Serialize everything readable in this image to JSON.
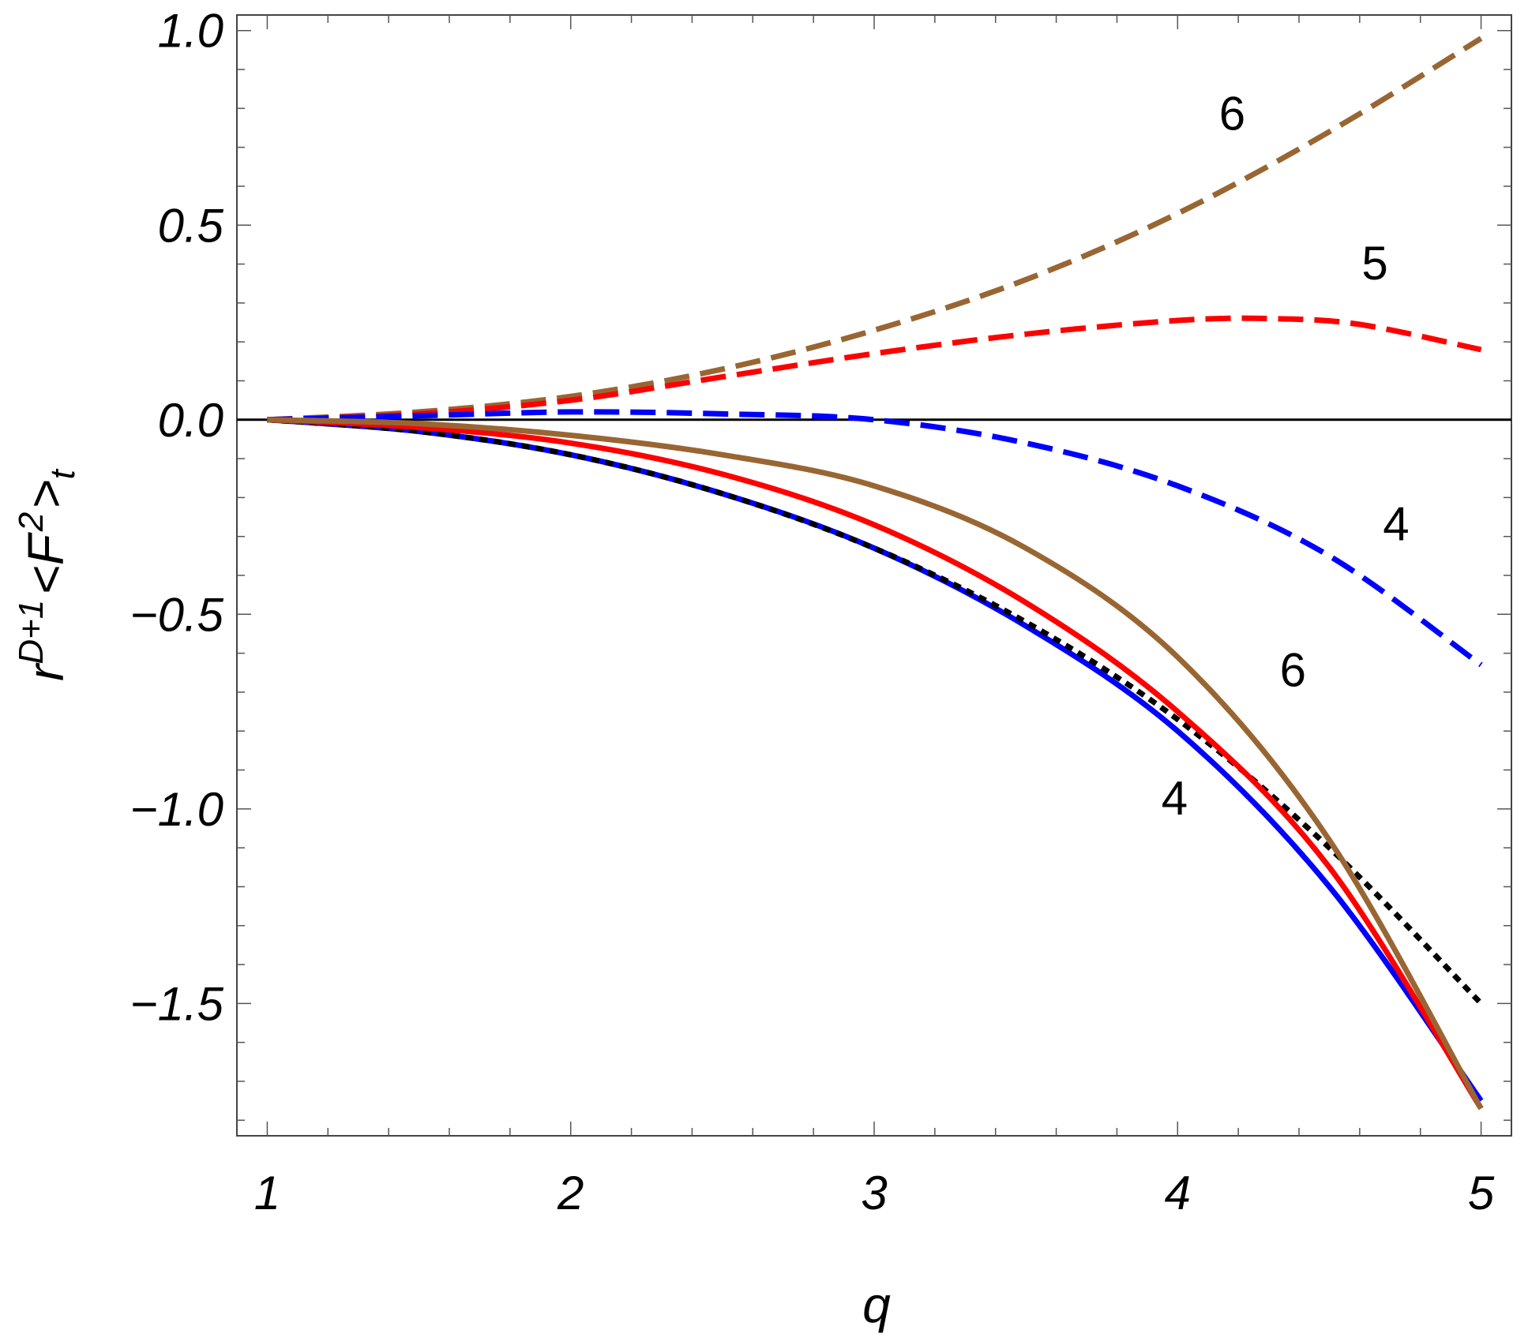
{
  "chart_data": {
    "type": "line",
    "title": "",
    "xlabel": "q",
    "ylabel": {
      "base": "r",
      "base_sup": "D+1",
      "open": "<F",
      "open_sup": "2",
      "close": ">",
      "close_sub": "t"
    },
    "xlim": [
      0.9,
      5.1
    ],
    "ylim": [
      -1.84,
      1.04
    ],
    "xticks": [
      1,
      2,
      3,
      4,
      5
    ],
    "xtick_labels": [
      "1",
      "2",
      "3",
      "4",
      "5"
    ],
    "yticks": [
      1.0,
      0.5,
      0.0,
      -0.5,
      -1.0,
      -1.5
    ],
    "ytick_labels": [
      "1.0",
      "0.5",
      "0.0",
      "−0.5",
      "−1.0",
      "−1.5"
    ],
    "grid": false,
    "zero_line": true,
    "series": [
      {
        "color": "#996633",
        "style": "dashed",
        "x": [
          1.0,
          1.5,
          2.0,
          2.5,
          3.0,
          3.5,
          4.0,
          4.5,
          5.0
        ],
        "y": [
          0.0,
          0.02,
          0.06,
          0.13,
          0.23,
          0.36,
          0.53,
          0.74,
          0.98
        ]
      },
      {
        "color": "#ff0000",
        "style": "dashed",
        "x": [
          1.0,
          1.5,
          2.0,
          2.5,
          3.0,
          3.5,
          4.0,
          4.3,
          4.6,
          5.0
        ],
        "y": [
          0.0,
          0.015,
          0.05,
          0.11,
          0.17,
          0.22,
          0.255,
          0.26,
          0.245,
          0.18
        ]
      },
      {
        "color": "#0000ff",
        "style": "dashed",
        "x": [
          1.0,
          1.5,
          2.0,
          2.5,
          3.0,
          3.5,
          4.0,
          4.5,
          5.0
        ],
        "y": [
          0.0,
          0.01,
          0.02,
          0.015,
          0.0,
          -0.06,
          -0.17,
          -0.35,
          -0.63
        ]
      },
      {
        "color": "#0000ff",
        "style": "solid",
        "x": [
          1.0,
          1.5,
          2.0,
          2.5,
          3.0,
          3.5,
          4.0,
          4.5,
          5.0
        ],
        "y": [
          0.0,
          -0.03,
          -0.09,
          -0.19,
          -0.33,
          -0.53,
          -0.8,
          -1.2,
          -1.75
        ]
      },
      {
        "color": "#000000",
        "style": "dotted",
        "x": [
          1.0,
          1.5,
          2.0,
          2.5,
          3.0,
          3.5,
          4.0,
          4.5,
          5.0
        ],
        "y": [
          0.0,
          -0.03,
          -0.09,
          -0.19,
          -0.33,
          -0.52,
          -0.77,
          -1.1,
          -1.5
        ]
      },
      {
        "color": "#ff0000",
        "style": "solid",
        "x": [
          1.0,
          1.5,
          2.0,
          2.5,
          3.0,
          3.5,
          4.0,
          4.5,
          5.0
        ],
        "y": [
          0.0,
          -0.02,
          -0.06,
          -0.14,
          -0.27,
          -0.47,
          -0.75,
          -1.15,
          -1.77
        ]
      },
      {
        "color": "#996633",
        "style": "solid",
        "x": [
          1.0,
          1.5,
          2.0,
          2.5,
          3.0,
          3.5,
          4.0,
          4.5,
          5.0
        ],
        "y": [
          0.0,
          -0.01,
          -0.04,
          -0.09,
          -0.17,
          -0.33,
          -0.61,
          -1.08,
          -1.77
        ]
      }
    ],
    "annotations": [
      {
        "text": "6",
        "x": 4.18,
        "y": 0.79
      },
      {
        "text": "5",
        "x": 4.65,
        "y": 0.405
      },
      {
        "text": "4",
        "x": 4.72,
        "y": -0.265
      },
      {
        "text": "6",
        "x": 4.38,
        "y": -0.64
      },
      {
        "text": "4",
        "x": 3.99,
        "y": -0.97
      }
    ]
  }
}
